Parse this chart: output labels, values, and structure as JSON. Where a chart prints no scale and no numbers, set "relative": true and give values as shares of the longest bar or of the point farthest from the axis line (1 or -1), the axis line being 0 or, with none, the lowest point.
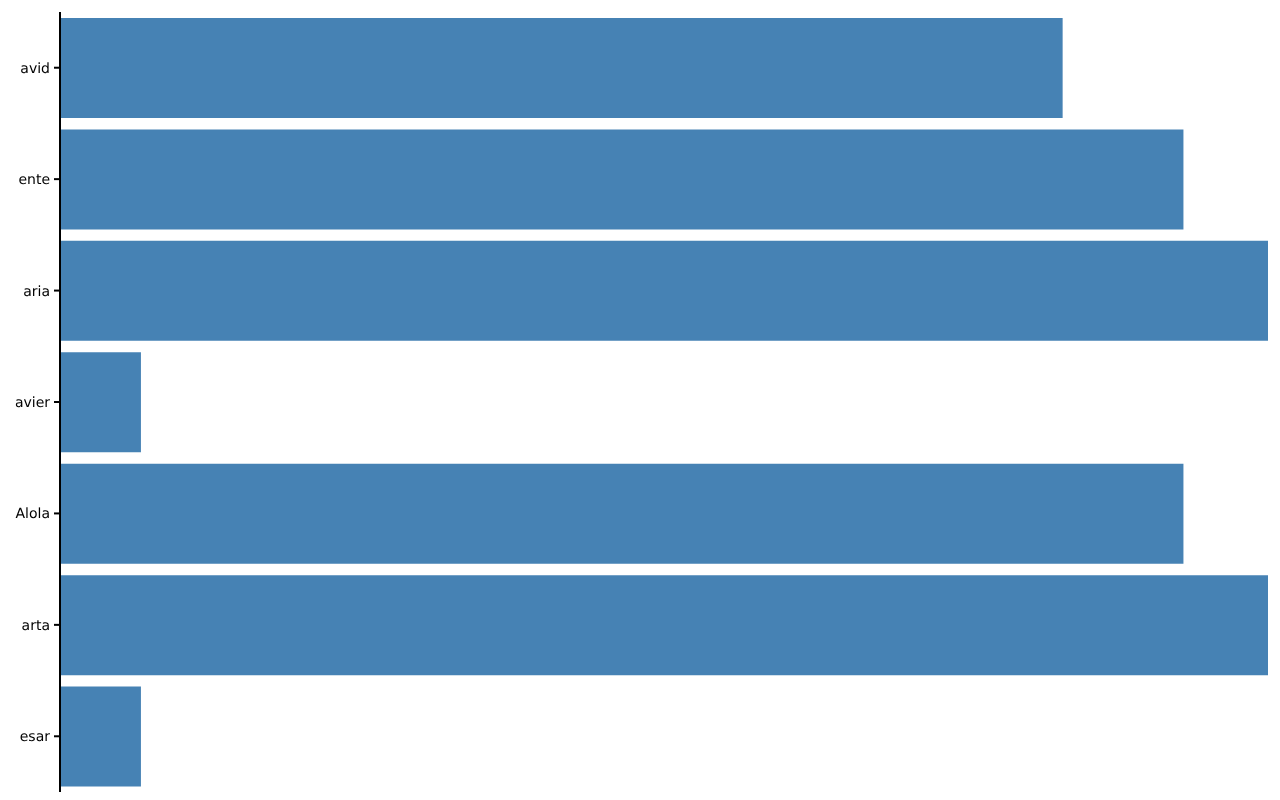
{
  "chart_data": {
    "type": "bar",
    "orientation": "horizontal",
    "relative": true,
    "categories": [
      "avid",
      "ente",
      "aria",
      "avier",
      "Alola",
      "arta",
      "esar"
    ],
    "values": [
      0.83,
      0.93,
      1,
      0.067,
      0.93,
      1,
      0.067
    ],
    "color": "#4682b4",
    "grid": false,
    "legend": false
  }
}
